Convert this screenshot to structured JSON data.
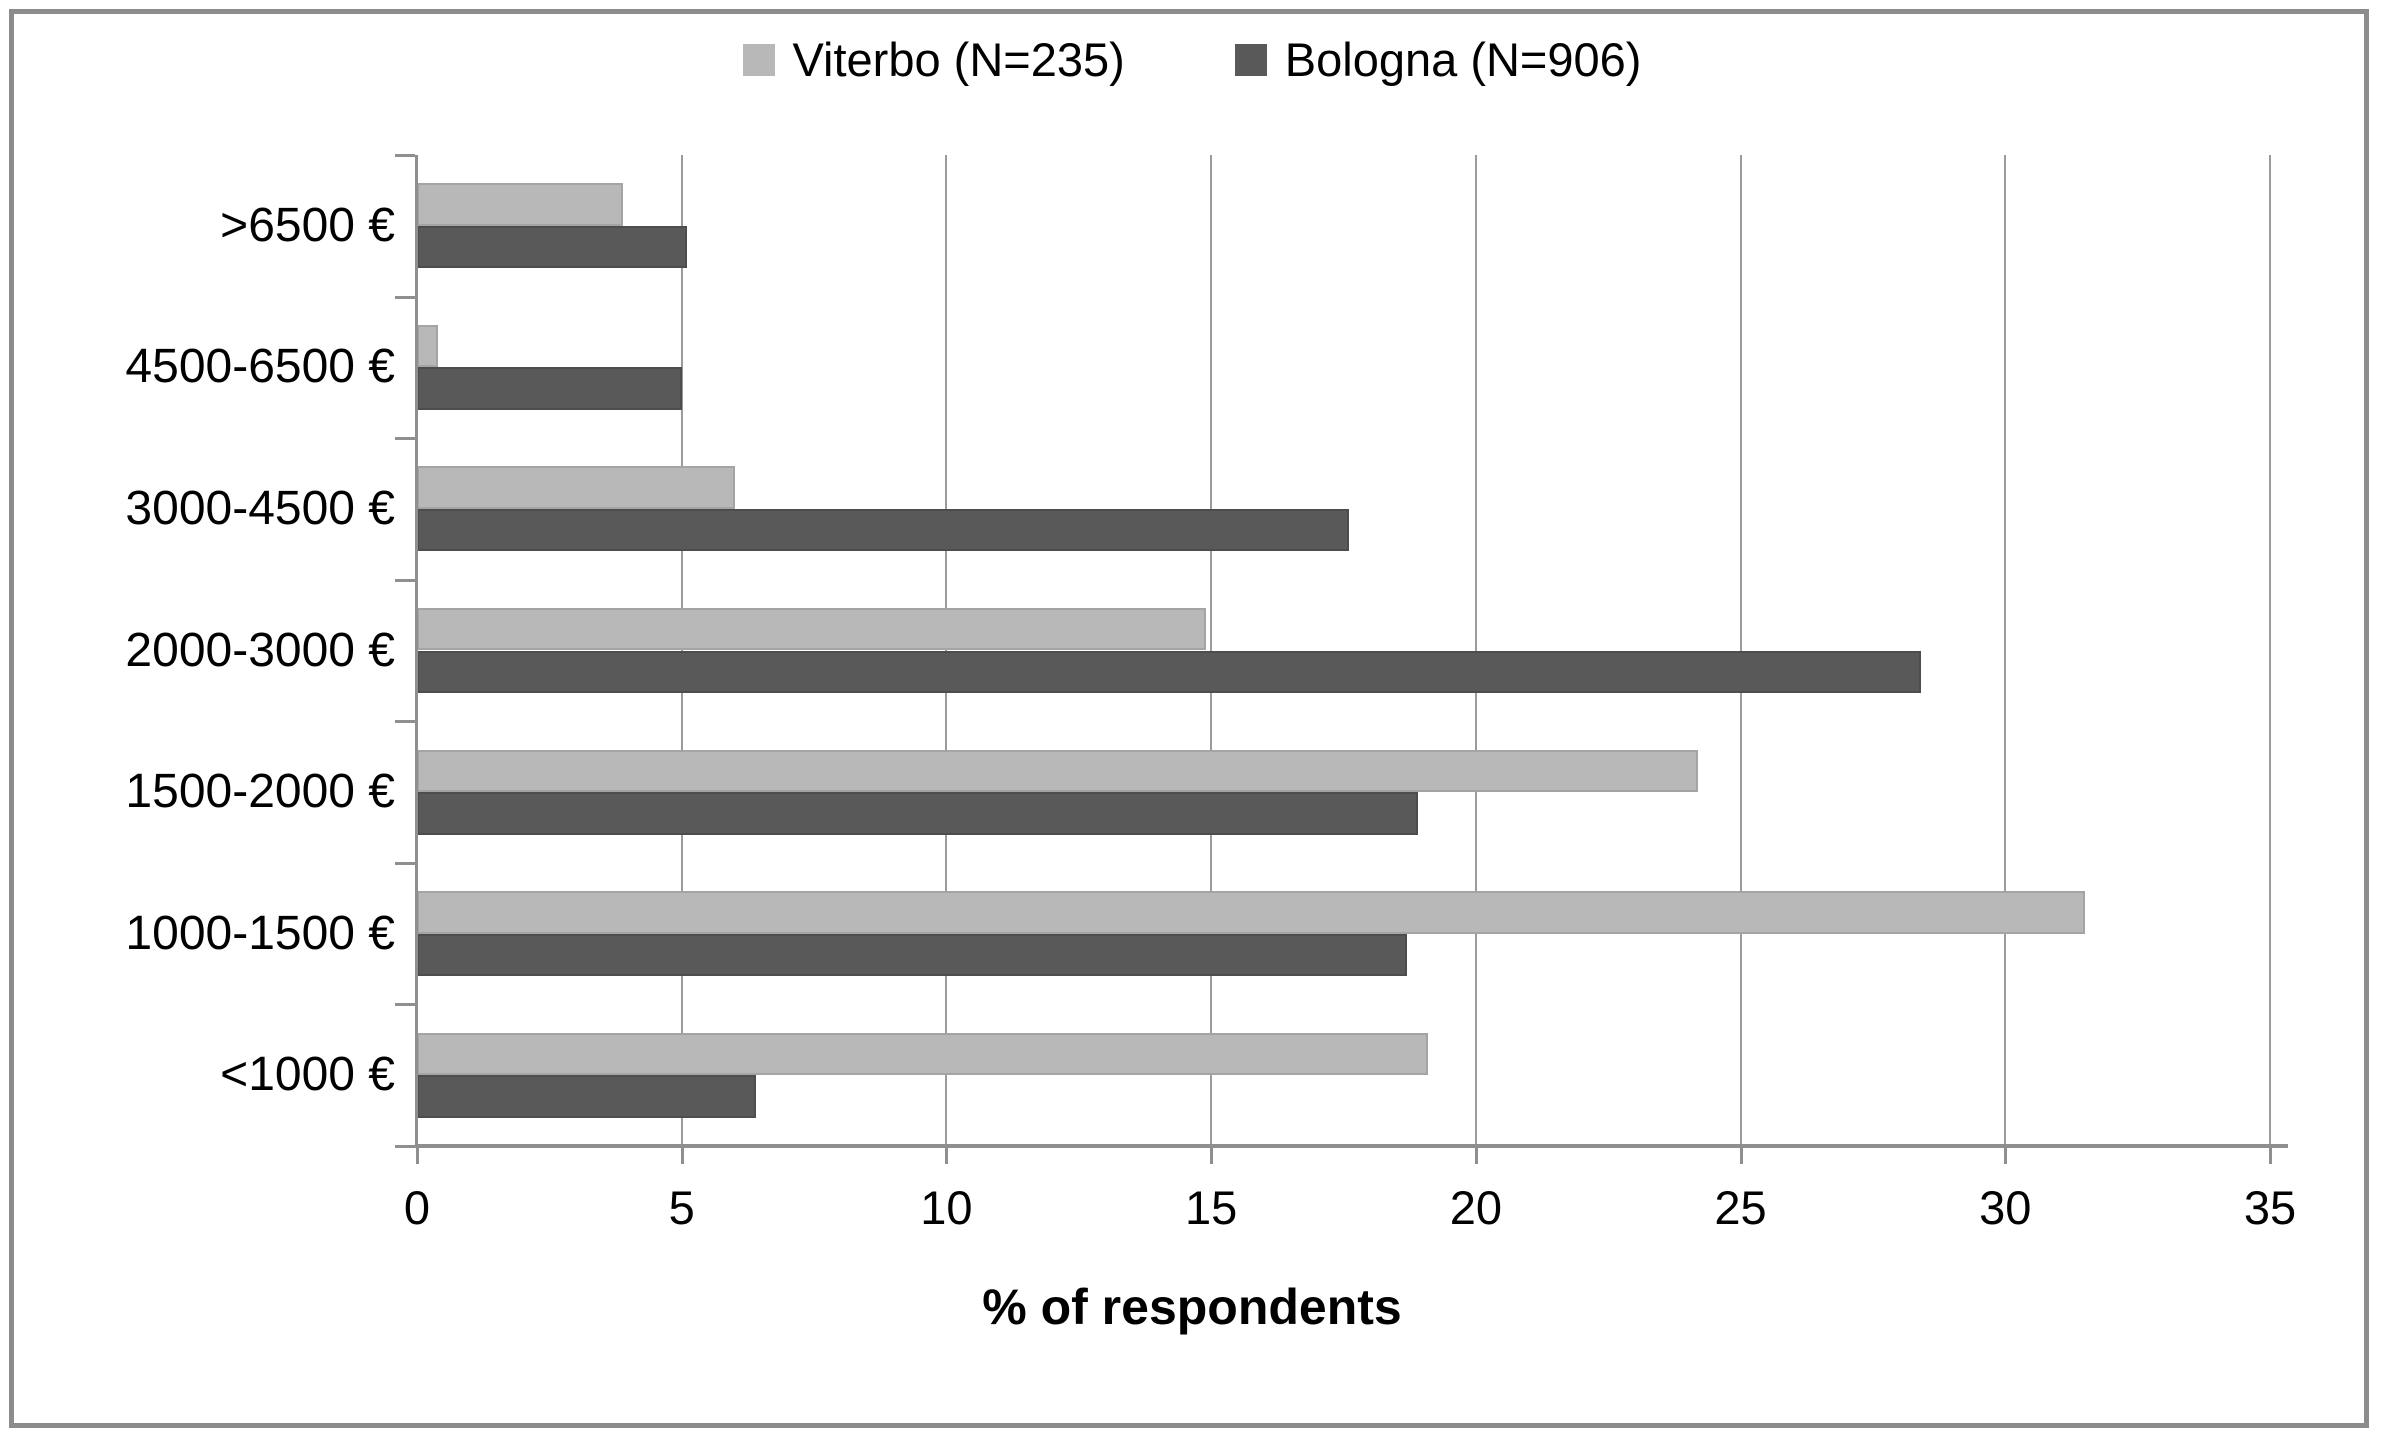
{
  "legend": {
    "items": [
      {
        "label": "Viterbo (N=235)",
        "color": "#b8b8b8"
      },
      {
        "label": "Bologna (N=906)",
        "color": "#595959"
      }
    ]
  },
  "chart_data": {
    "type": "bar",
    "orientation": "horizontal",
    "xlabel": "% of respondents",
    "categories": [
      ">6500 €",
      "4500-6500 €",
      "3000-4500 €",
      "2000-3000 €",
      "1500-2000 €",
      "1000-1500 €",
      "<1000 €"
    ],
    "series": [
      {
        "name": "Viterbo (N=235)",
        "color": "#b8b8b8",
        "border_color": "#a4a4a4",
        "values": [
          3.9,
          0.4,
          6.0,
          14.9,
          24.2,
          31.5,
          19.1
        ]
      },
      {
        "name": "Bologna (N=906)",
        "color": "#595959",
        "border_color": "#4d4d4d",
        "values": [
          5.1,
          5.0,
          17.6,
          28.4,
          18.9,
          18.7,
          6.4
        ]
      }
    ],
    "xlim": [
      0,
      35
    ],
    "x_ticks": [
      0,
      5,
      10,
      15,
      20,
      25,
      30,
      35
    ],
    "grid": "vertical",
    "legend_position": "top-center"
  }
}
